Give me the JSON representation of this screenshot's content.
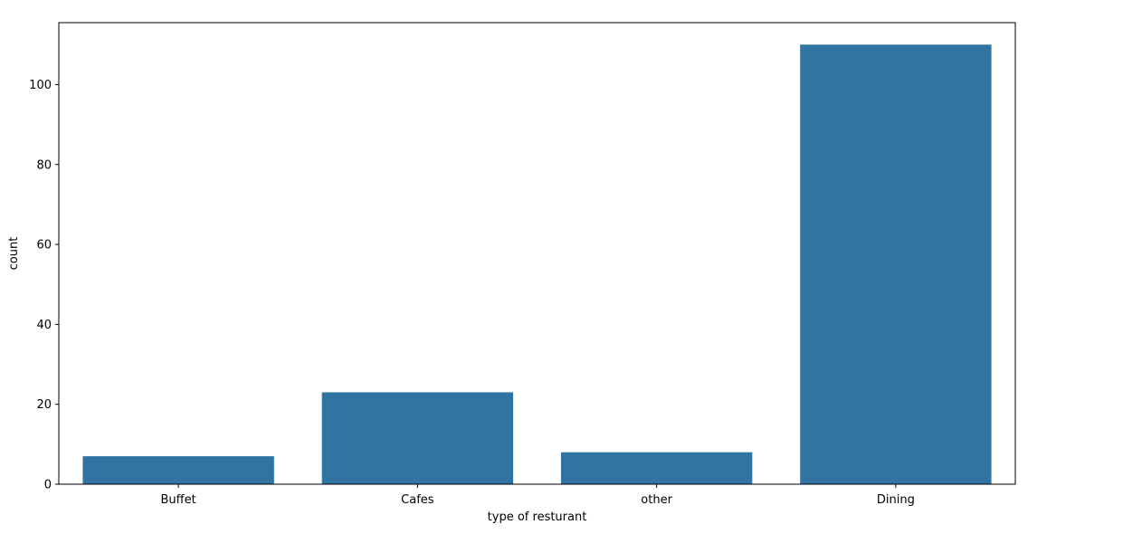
{
  "chart_data": {
    "type": "bar",
    "title": "",
    "xlabel": "type of resturant",
    "ylabel": "count",
    "categories": [
      "Buffet",
      "Cafes",
      "other",
      "Dining"
    ],
    "values": [
      7,
      23,
      8,
      110
    ],
    "ylim": [
      0,
      115.5
    ],
    "yticks": [
      0,
      20,
      40,
      60,
      80,
      100
    ],
    "grid": false,
    "legend": "none",
    "bar_color": "#3274a1"
  }
}
